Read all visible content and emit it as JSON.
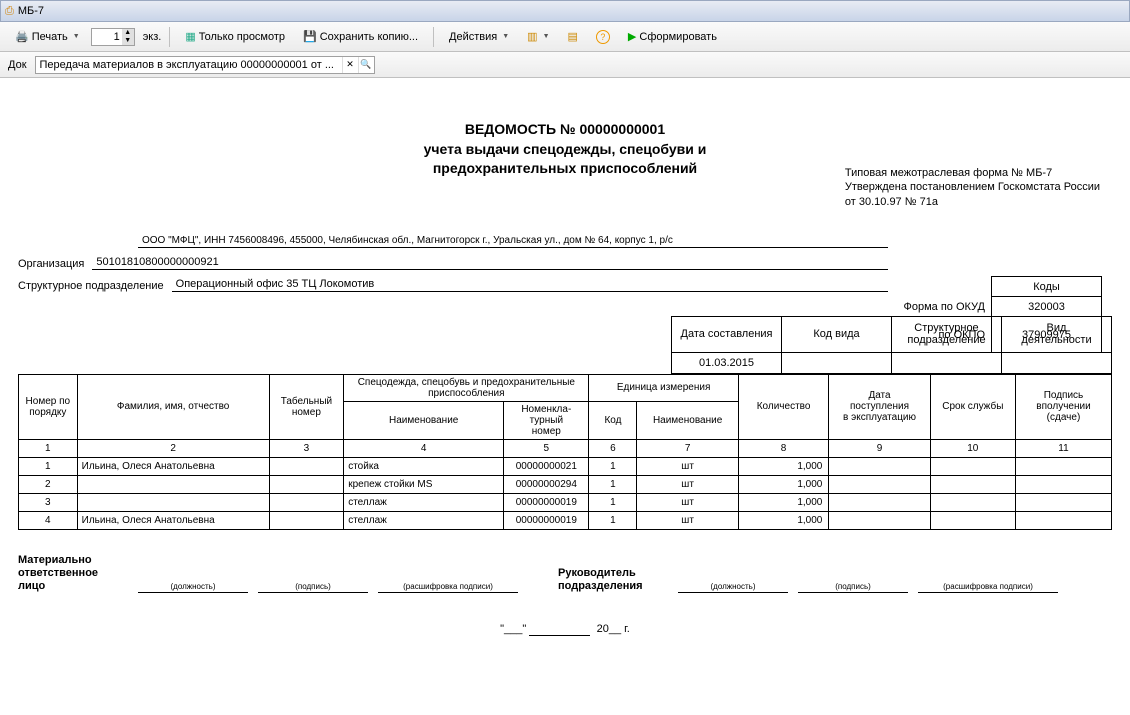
{
  "window": {
    "title": "МБ-7"
  },
  "toolbar": {
    "print": "Печать",
    "copies": "1",
    "copies_suffix": "экз.",
    "view_only": "Только просмотр",
    "save_copy": "Сохранить копию...",
    "actions": "Действия",
    "generate": "Сформировать"
  },
  "docrow": {
    "label": "Док",
    "value": "Передача материалов в эксплуатацию 00000000001 от ..."
  },
  "approval": {
    "l1": "Типовая межотраслевая форма № МБ-7",
    "l2": "Утверждена постановлением Госкомстата России",
    "l3": "от 30.10.97 № 71а"
  },
  "title": {
    "l1": "ВЕДОМОСТЬ № 00000000001",
    "l2": "учета выдачи спецодежды, спецобуви и",
    "l3": "предохранительных приспособлений"
  },
  "codes": {
    "header": "Коды",
    "okud_label": "Форма по ОКУД",
    "okud": "320003",
    "okpo_label": "по ОКПО",
    "okpo": "37909975"
  },
  "org": {
    "org_label": "Организация",
    "org_prefix": "ООО \"МФЦ\", ИНН 7456008496, 455000, Челябинская обл., Магнитогорск г., Уральская ул., дом № 64, корпус 1, р/с",
    "org_value": "50101810800000000921",
    "dept_label": "Структурное подразделение",
    "dept_value": "Операционный офис 35  ТЦ Локомотив"
  },
  "meta": {
    "cols": [
      "Дата составления",
      "Код вида",
      "Структурное\nподразделение",
      "Вид деятельности"
    ],
    "date": "01.03.2015"
  },
  "table": {
    "h_num": "Номер по порядку",
    "h_fio": "Фамилия, имя, отчество",
    "h_tab": "Табельный номер",
    "h_spec": "Спецодежда, спецобувь и предохранительные приспособления",
    "h_name": "Наименование",
    "h_nomen": "Номенкла-\nтурный\nномер",
    "h_unit": "Единица измерения",
    "h_code": "Код",
    "h_uname": "Наименование",
    "h_qty": "Количество",
    "h_start": "Дата\nпоступления\nв эксплуатацию",
    "h_life": "Срок службы",
    "h_sign": "Подпись\nвполучении\n(сдаче)",
    "colnums": [
      "1",
      "2",
      "3",
      "4",
      "5",
      "6",
      "7",
      "8",
      "9",
      "10",
      "11"
    ],
    "rows": [
      {
        "n": "1",
        "fio": "Ильина, Олеся Анатольевна",
        "tab": "",
        "name": "стойка",
        "nomen": "00000000021",
        "code": "1",
        "uname": "шт",
        "qty": "1,000"
      },
      {
        "n": "2",
        "fio": "",
        "tab": "",
        "name": "крепеж стойки MS",
        "nomen": "00000000294",
        "code": "1",
        "uname": "шт",
        "qty": "1,000"
      },
      {
        "n": "3",
        "fio": "",
        "tab": "",
        "name": "стеллаж",
        "nomen": "00000000019",
        "code": "1",
        "uname": "шт",
        "qty": "1,000"
      },
      {
        "n": "4",
        "fio": "Ильина, Олеся Анатольевна",
        "tab": "",
        "name": "стеллаж",
        "nomen": "00000000019",
        "code": "1",
        "uname": "шт",
        "qty": "1,000"
      }
    ]
  },
  "sig": {
    "l1a": "Материально",
    "l1b": "ответственное лицо",
    "r1a": "Руководитель",
    "r1b": "подразделения",
    "hint_pos": "(должность)",
    "hint_sign": "(подпись)",
    "hint_name": "(расшифровка подписи)"
  },
  "date_footer": {
    "quote": "\"___\"",
    "year_pfx": "20__",
    "year_sfx": "г."
  }
}
